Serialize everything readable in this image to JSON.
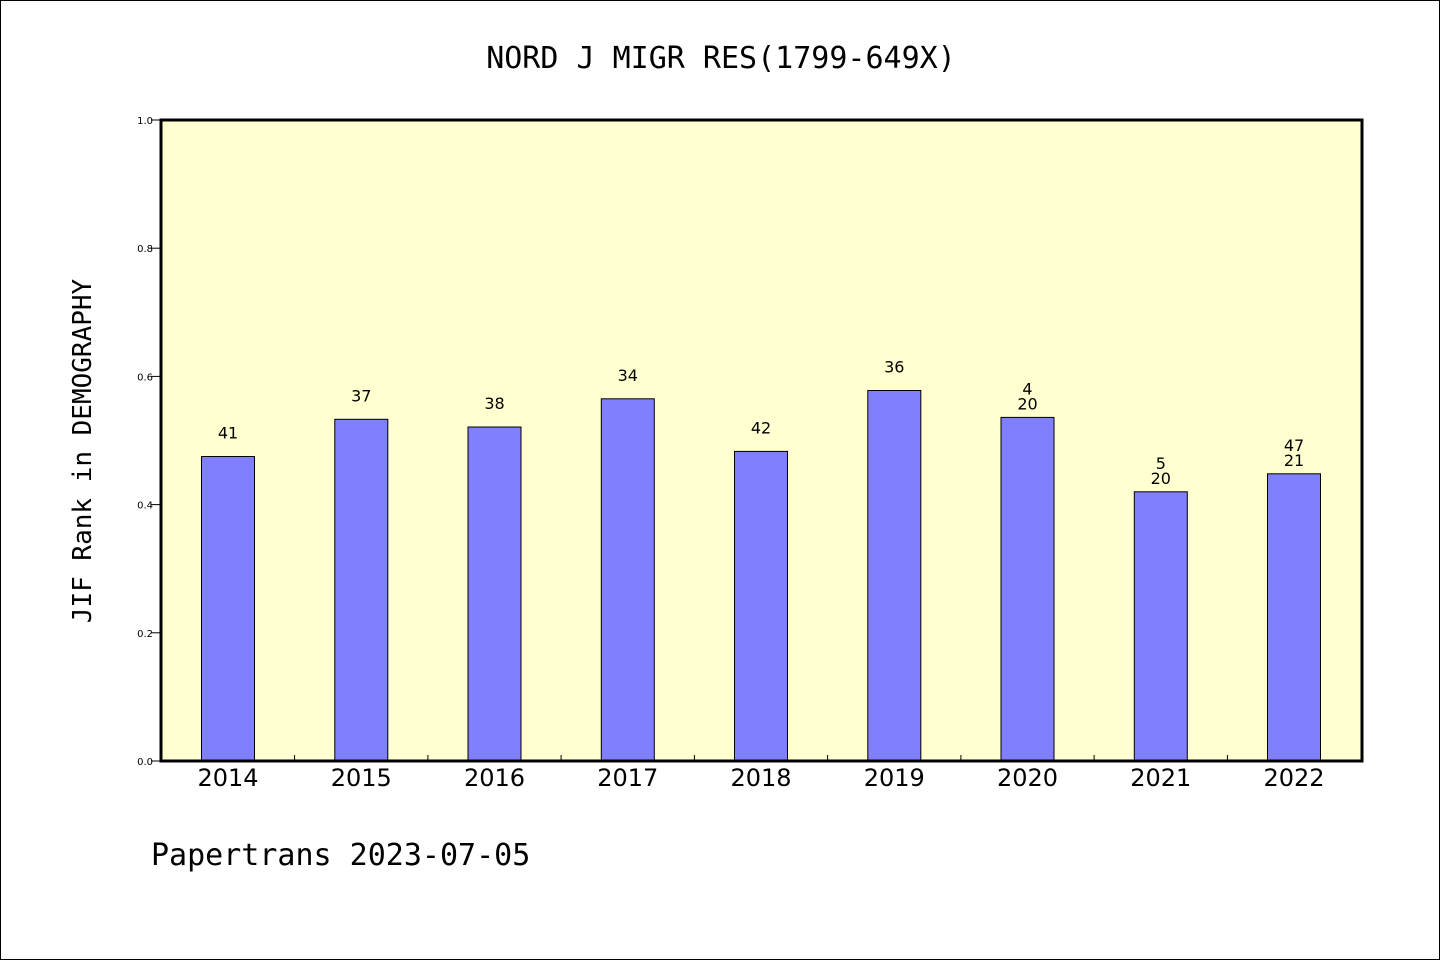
{
  "chart_data": {
    "type": "bar",
    "title": "NORD J MIGR RES(1799-649X)",
    "xlabel": "",
    "ylabel": "JIF Rank in DEMOGRAPHY",
    "ylim": [
      0,
      1.0
    ],
    "yticks": [
      "0.0",
      "0.2",
      "0.4",
      "0.6",
      "0.8",
      "1.0"
    ],
    "categories": [
      "2014",
      "2015",
      "2016",
      "2017",
      "2018",
      "2019",
      "2020",
      "2021",
      "2022"
    ],
    "values": [
      0.475,
      0.533,
      0.521,
      0.565,
      0.483,
      0.578,
      0.536,
      0.42,
      0.448
    ],
    "bar_labels": [
      [
        "41"
      ],
      [
        "37"
      ],
      [
        "38"
      ],
      [
        "34"
      ],
      [
        "42"
      ],
      [
        "36"
      ],
      [
        "4",
        "20"
      ],
      [
        "5",
        "20"
      ],
      [
        "47",
        "21"
      ]
    ],
    "grid": false,
    "colors": {
      "bar": "#8080ff",
      "plot_background": "#ffffd0",
      "axis": "#000000"
    }
  },
  "footer": "Papertrans 2023-07-05"
}
